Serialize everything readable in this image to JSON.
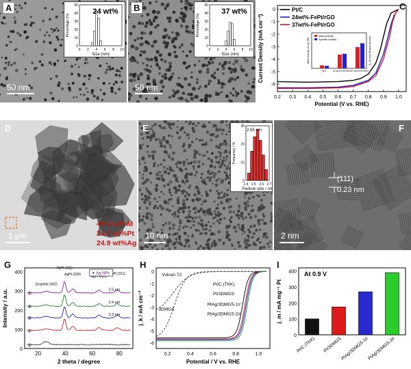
{
  "panels": {
    "A": {
      "label": "A",
      "inset_title": "24 wt%",
      "inset_xlabel": "Size (nm)",
      "inset_ylabel": "Percentage (%)",
      "inset_yticks": [
        "0",
        "10",
        "20",
        "30",
        "40",
        "50"
      ],
      "inset_xticks": [
        "0",
        "2",
        "4",
        "6",
        "8",
        "10"
      ],
      "scale": "50 nm"
    },
    "B": {
      "label": "B",
      "inset_title": "37 wt%",
      "inset_xlabel": "Size (nm)",
      "inset_ylabel": "Percentage (%)",
      "inset_yticks": [
        "0",
        "10",
        "20",
        "30",
        "40",
        "50"
      ],
      "inset_xticks": [
        "0",
        "2",
        "4",
        "6",
        "8",
        "10"
      ],
      "scale": "50 nm"
    },
    "C": {
      "label": "C",
      "legend": [
        "Pt/C",
        "24wt%-FePt/rGO",
        "37wt%-FePt/rGO"
      ],
      "legend_colors": [
        "#000000",
        "#1a1acc",
        "#cc1a2a"
      ],
      "ylabel": "Current Density (mA cm⁻²)",
      "xlabel": "Potential (V vs. RHE)",
      "xticks": [
        "0.2",
        "0.3",
        "0.4",
        "0.5",
        "0.6",
        "0.7",
        "0.8",
        "0.9",
        "1.0"
      ],
      "yticks": [
        "0",
        "-1",
        "-2",
        "-3",
        "-4",
        "-5",
        "-6"
      ],
      "inset_legend": [
        "Mass Activity",
        "Specific Activity"
      ],
      "inset_cats": [
        "Pt/C",
        "24 wt% FePt/GO",
        "37 wt% FePt/GO"
      ],
      "inset_ylabel_left": "Mass Activity (A mg⁻¹Pt)",
      "inset_ylabel_right": "Specific Activity (mA cm⁻²)"
    },
    "D": {
      "label": "D",
      "scale": "1 μm",
      "composition": [
        "49.6 wt%M",
        "24.7 wt%Pt",
        "24.9 wt%Ag"
      ]
    },
    "E": {
      "label": "E",
      "scale": "10 nm",
      "inset_title": "2.55 nm",
      "inset_xlabel": "Particle size / nm",
      "inset_ylabel": "Frequency / %",
      "inset_xticks": [
        "2.4",
        "2.5",
        "2.6",
        "2.7"
      ],
      "inset_yticks": [
        "0",
        "10",
        "20",
        "30"
      ]
    },
    "F": {
      "label": "F",
      "scale": "2 nm",
      "plane": "(111)",
      "spacing": "0.23 nm"
    },
    "G": {
      "label": "G",
      "legend": "Ag NPs",
      "ylabel": "Intensity / a.u.",
      "xlabel": "2 theta / degree",
      "xticks": [
        "20",
        "40",
        "60",
        "80"
      ],
      "yticks": [
        "0",
        "100",
        "200",
        "300",
        "400"
      ],
      "peaks": [
        "Graphite (002)",
        "AgPt (111)",
        "AgPt (200)",
        "AgPt (220)",
        "AgPt (311)"
      ],
      "sizes": [
        "2.5 nm",
        "2.4 nm",
        "2.3 nm"
      ],
      "curve_ids": [
        "①",
        "②",
        "③",
        "④",
        "⑤"
      ]
    },
    "H": {
      "label": "H",
      "ylabel": "j_k / mA cm⁻²",
      "xlabel": "Potential / V vs. RHE",
      "xticks": [
        "0.2",
        "0.4",
        "0.6",
        "0.8",
        "1.0"
      ],
      "yticks": [
        "0",
        "-1",
        "-2",
        "-3",
        "-4",
        "-5",
        "-6"
      ],
      "curve_labels": [
        "Vulcan 72",
        "3DMGS",
        "Pt/C (TKK)",
        "Pt/3DMGS",
        "PtAg/3DMGS-1#",
        "PtAg/3DMGS-2#"
      ]
    },
    "I": {
      "label": "I",
      "note": "At 0.9 V",
      "ylabel": "j_m / mA mg⁻¹ Pt",
      "yticks": [
        "0",
        "100",
        "200",
        "300",
        "400"
      ]
    }
  },
  "chart_data": [
    {
      "panel": "A-inset",
      "type": "bar",
      "x": [
        3.0,
        3.5,
        4.0,
        4.5,
        5.0
      ],
      "values": [
        4,
        18,
        42,
        34,
        6
      ],
      "title": "24 wt%",
      "xlabel": "Size (nm)",
      "ylabel": "Percentage (%)",
      "ylim": [
        0,
        50
      ]
    },
    {
      "panel": "B-inset",
      "type": "bar",
      "x": [
        4.0,
        4.5,
        5.0,
        5.5,
        6.0
      ],
      "values": [
        6,
        18,
        29,
        27,
        8
      ],
      "title": "37 wt%",
      "xlabel": "Size (nm)",
      "ylabel": "Percentage (%)",
      "ylim": [
        0,
        50
      ]
    },
    {
      "panel": "C",
      "type": "line",
      "xlabel": "Potential (V vs. RHE)",
      "ylabel": "Current Density (mA cm⁻²)",
      "xlim": [
        0.2,
        1.05
      ],
      "ylim": [
        -6.6,
        0.3
      ],
      "series": [
        {
          "name": "Pt/C",
          "color": "#000000",
          "x": [
            0.2,
            0.4,
            0.6,
            0.7,
            0.75,
            0.8,
            0.85,
            0.88,
            0.9,
            0.92,
            0.95,
            1.0
          ],
          "y": [
            -5.8,
            -5.85,
            -5.8,
            -5.7,
            -5.55,
            -5.2,
            -4.3,
            -3.2,
            -2.2,
            -1.2,
            -0.3,
            0.0
          ]
        },
        {
          "name": "24wt%-FePt/rGO",
          "color": "#1a1acc",
          "x": [
            0.2,
            0.4,
            0.6,
            0.7,
            0.8,
            0.85,
            0.9,
            0.93,
            0.95,
            0.97,
            1.0
          ],
          "y": [
            -6.3,
            -6.3,
            -6.25,
            -6.1,
            -5.7,
            -5.1,
            -3.6,
            -2.2,
            -1.2,
            -0.5,
            0.0
          ]
        },
        {
          "name": "37wt%-FePt/rGO",
          "color": "#cc1a2a",
          "x": [
            0.2,
            0.4,
            0.6,
            0.7,
            0.8,
            0.85,
            0.9,
            0.94,
            0.96,
            0.98,
            1.0
          ],
          "y": [
            -6.35,
            -6.35,
            -6.3,
            -6.2,
            -5.8,
            -5.3,
            -4.0,
            -2.2,
            -1.0,
            -0.3,
            0.0
          ]
        }
      ]
    },
    {
      "panel": "C-inset",
      "type": "bar",
      "categories": [
        "Pt/C",
        "24 wt% FePt/GO",
        "37 wt% FePt/GO"
      ],
      "series": [
        {
          "name": "Mass Activity",
          "color": "#e02020",
          "values": [
            0.12,
            0.55,
            0.85
          ]
        },
        {
          "name": "Specific Activity",
          "color": "#2020d0",
          "values": [
            0.1,
            0.58,
            1.0
          ]
        }
      ],
      "ylim": [
        0,
        1.2
      ]
    },
    {
      "panel": "E-inset",
      "type": "bar",
      "x": [
        2.4,
        2.45,
        2.5,
        2.55,
        2.6,
        2.65,
        2.7
      ],
      "values": [
        4,
        16,
        24,
        28,
        22,
        14,
        6
      ],
      "title": "2.55 nm",
      "xlabel": "Particle size / nm",
      "ylabel": "Frequency / %",
      "ylim": [
        0,
        30
      ]
    },
    {
      "panel": "G",
      "type": "line",
      "xlabel": "2 theta / degree",
      "ylabel": "Intensity / a.u.",
      "xlim": [
        10,
        90
      ],
      "ylim": [
        0,
        420
      ]
    },
    {
      "panel": "H",
      "type": "line",
      "xlabel": "Potential / V vs. RHE",
      "ylabel": "j_k / mA cm⁻²",
      "xlim": [
        0.1,
        1.1
      ],
      "ylim": [
        -6.5,
        0.3
      ]
    },
    {
      "panel": "I",
      "type": "bar",
      "categories": [
        "Pt/C (TKK)",
        "Pt/3DMGS",
        "PtAg/3DMGS-1#",
        "PtAg/3DMGS-2#"
      ],
      "values": [
        100,
        175,
        270,
        390
      ],
      "colors": [
        "#111111",
        "#dd1a1a",
        "#2a2acc",
        "#2acc2a"
      ],
      "ylabel": "j_m / mA mg⁻¹ Pt",
      "ylim": [
        0,
        420
      ]
    }
  ]
}
